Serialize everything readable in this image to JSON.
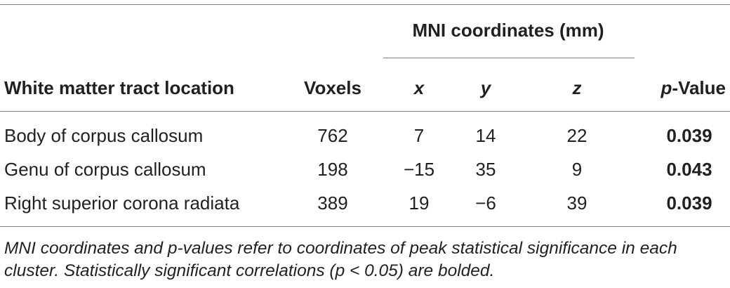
{
  "table": {
    "group_header": "MNI coordinates (mm)",
    "columns": {
      "location": "White matter tract location",
      "voxels": "Voxels",
      "x": "x",
      "y": "y",
      "z": "z",
      "p_italic": "p",
      "p_rest": "-Value"
    },
    "rows": [
      {
        "location": "Body of corpus callosum",
        "voxels": "762",
        "x": "7",
        "y": "14",
        "z": "22",
        "p": "0.039"
      },
      {
        "location": "Genu of corpus callosum",
        "voxels": "198",
        "x": "−15",
        "y": "35",
        "z": "9",
        "p": "0.043"
      },
      {
        "location": "Right superior corona radiata",
        "voxels": "389",
        "x": "19",
        "y": "−6",
        "z": "39",
        "p": "0.039"
      }
    ],
    "footnote": "MNI coordinates and p-values refer to coordinates of peak statistical significance in each cluster. Statistically significant correlations (p < 0.05) are bolded."
  }
}
